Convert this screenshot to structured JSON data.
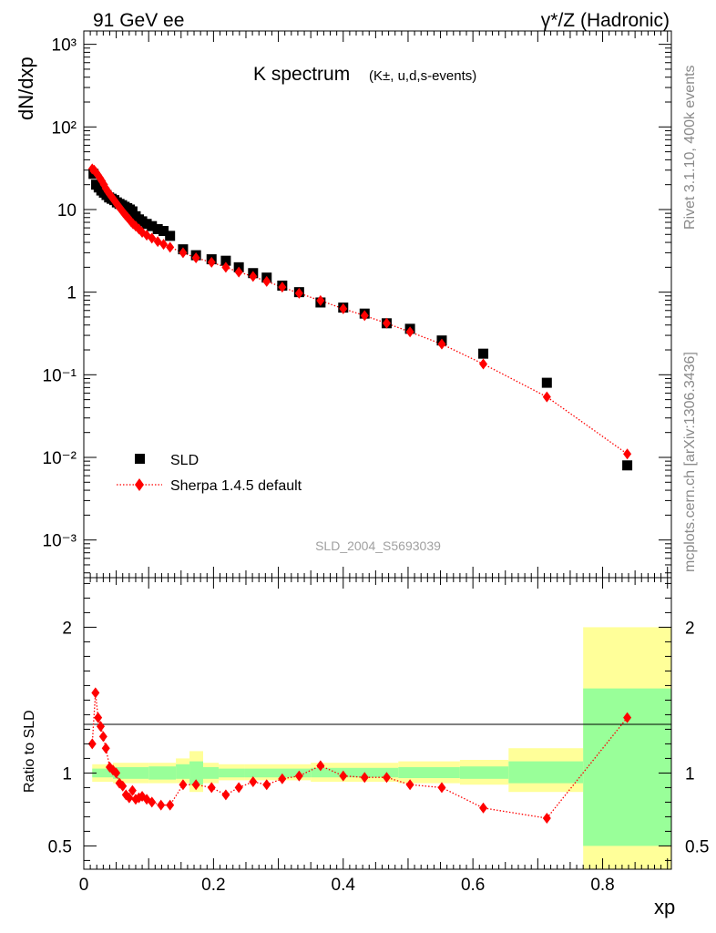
{
  "header": {
    "left_label": "91 GeV ee",
    "right_label": "γ*/Z (Hadronic)"
  },
  "side_text": {
    "version": "Rivet 3.1.10,  400k events",
    "source": "mcplots.cern.ch [arXiv:1306.3436]"
  },
  "watermark": "SLD_2004_S5693039",
  "chart_data": [
    {
      "type": "scatter",
      "name": "main",
      "title": "K spectrum",
      "subtitle": "(K±, u,d,s-events)",
      "xlabel": "xp",
      "ylabel": "dN/dxp",
      "yscale": "log",
      "xlim": [
        0,
        0.906
      ],
      "ylim": [
        0.00035,
        1450
      ],
      "xticks": [
        "0",
        "0.2",
        "0.4",
        "0.6",
        "0.8"
      ],
      "yticks": [
        "10⁻³",
        "10⁻²",
        "10⁻¹",
        "1",
        "10",
        "10²",
        "10³"
      ],
      "legend": {
        "position": "bottom-left",
        "entries": [
          "SLD",
          "Sherpa 1.4.5 default"
        ]
      },
      "series": [
        {
          "name": "SLD",
          "marker": "square",
          "color": "#000000",
          "x": [
            0.015,
            0.019,
            0.023,
            0.027,
            0.031,
            0.035,
            0.039,
            0.043,
            0.047,
            0.051,
            0.055,
            0.059,
            0.063,
            0.067,
            0.071,
            0.075,
            0.08,
            0.085,
            0.09,
            0.097,
            0.105,
            0.114,
            0.123,
            0.133,
            0.153,
            0.173,
            0.197,
            0.219,
            0.239,
            0.261,
            0.282,
            0.306,
            0.332,
            0.365,
            0.4,
            0.433,
            0.467,
            0.503,
            0.552,
            0.616,
            0.714,
            0.838
          ],
          "y": [
            27,
            20,
            18.5,
            17,
            16,
            15,
            14,
            13.5,
            13,
            12.2,
            11.7,
            11.3,
            10.8,
            10.4,
            10,
            9.5,
            8.3,
            7.6,
            7.2,
            6.7,
            6.3,
            5.8,
            5.5,
            4.8,
            3.3,
            2.8,
            2.5,
            2.4,
            2.0,
            1.7,
            1.5,
            1.2,
            1.0,
            0.75,
            0.65,
            0.55,
            0.42,
            0.36,
            0.26,
            0.18,
            0.08,
            0.008
          ]
        },
        {
          "name": "Sherpa 1.4.5 default",
          "marker": "diamond",
          "line": "dotted",
          "color": "#ff0000",
          "x": [
            0.013,
            0.016,
            0.019,
            0.022,
            0.025,
            0.028,
            0.031,
            0.034,
            0.037,
            0.04,
            0.043,
            0.046,
            0.049,
            0.052,
            0.055,
            0.058,
            0.061,
            0.064,
            0.067,
            0.07,
            0.073,
            0.076,
            0.08,
            0.085,
            0.09,
            0.097,
            0.105,
            0.114,
            0.123,
            0.133,
            0.153,
            0.173,
            0.197,
            0.219,
            0.239,
            0.261,
            0.282,
            0.306,
            0.332,
            0.365,
            0.4,
            0.433,
            0.467,
            0.503,
            0.552,
            0.616,
            0.714,
            0.838
          ],
          "y": [
            31,
            30,
            28,
            26,
            24,
            22,
            20,
            18,
            16.5,
            15.3,
            14.2,
            13.2,
            12.3,
            11.4,
            10.6,
            9.9,
            9.2,
            8.6,
            8.1,
            7.6,
            7.1,
            6.7,
            6.3,
            5.8,
            5.3,
            4.9,
            4.5,
            4.1,
            3.8,
            3.5,
            3.0,
            2.6,
            2.3,
            2.0,
            1.75,
            1.55,
            1.35,
            1.15,
            0.97,
            0.79,
            0.63,
            0.52,
            0.42,
            0.33,
            0.235,
            0.135,
            0.054,
            0.011
          ]
        }
      ]
    },
    {
      "type": "scatter",
      "name": "ratio",
      "xlabel": "xp",
      "ylabel": "Ratio to SLD",
      "xlim": [
        0,
        0.906
      ],
      "ylim": [
        0.34,
        2.34
      ],
      "xticks": [
        "0",
        "0.2",
        "0.4",
        "0.6",
        "0.8"
      ],
      "yticks": [
        "0.5",
        "1",
        "2"
      ],
      "bands": [
        {
          "x0": 0.013,
          "x1": 0.045,
          "inner": [
            0.97,
            1.03
          ],
          "outer": [
            0.94,
            1.06
          ]
        },
        {
          "x0": 0.045,
          "x1": 0.1,
          "inner": [
            0.96,
            1.04
          ],
          "outer": [
            0.93,
            1.07
          ]
        },
        {
          "x0": 0.1,
          "x1": 0.142,
          "inner": [
            0.955,
            1.045
          ],
          "outer": [
            0.93,
            1.07
          ]
        },
        {
          "x0": 0.142,
          "x1": 0.163,
          "inner": [
            0.96,
            1.06
          ],
          "outer": [
            0.93,
            1.1
          ]
        },
        {
          "x0": 0.163,
          "x1": 0.184,
          "inner": [
            0.92,
            1.08
          ],
          "outer": [
            0.87,
            1.15
          ]
        },
        {
          "x0": 0.184,
          "x1": 0.208,
          "inner": [
            0.96,
            1.04
          ],
          "outer": [
            0.93,
            1.07
          ]
        },
        {
          "x0": 0.208,
          "x1": 0.248,
          "inner": [
            0.97,
            1.03
          ],
          "outer": [
            0.95,
            1.06
          ]
        },
        {
          "x0": 0.248,
          "x1": 0.35,
          "inner": [
            0.97,
            1.03
          ],
          "outer": [
            0.95,
            1.06
          ]
        },
        {
          "x0": 0.35,
          "x1": 0.485,
          "inner": [
            0.97,
            1.035
          ],
          "outer": [
            0.94,
            1.07
          ]
        },
        {
          "x0": 0.485,
          "x1": 0.58,
          "inner": [
            0.965,
            1.04
          ],
          "outer": [
            0.93,
            1.08
          ]
        },
        {
          "x0": 0.58,
          "x1": 0.655,
          "inner": [
            0.96,
            1.045
          ],
          "outer": [
            0.92,
            1.09
          ]
        },
        {
          "x0": 0.655,
          "x1": 0.77,
          "inner": [
            0.93,
            1.08
          ],
          "outer": [
            0.87,
            1.17
          ]
        },
        {
          "x0": 0.77,
          "x1": 0.906,
          "inner": [
            0.5,
            1.58
          ],
          "outer": [
            0.3,
            2.0
          ]
        }
      ],
      "reference_line": 1,
      "series": [
        {
          "name": "Sherpa 1.4.5 default / SLD",
          "marker": "diamond",
          "line": "dotted",
          "color": "#ff0000",
          "x": [
            0.013,
            0.018,
            0.022,
            0.026,
            0.03,
            0.034,
            0.04,
            0.045,
            0.05,
            0.055,
            0.06,
            0.065,
            0.07,
            0.075,
            0.08,
            0.085,
            0.09,
            0.097,
            0.105,
            0.119,
            0.133,
            0.153,
            0.173,
            0.197,
            0.219,
            0.239,
            0.261,
            0.282,
            0.306,
            0.332,
            0.365,
            0.4,
            0.433,
            0.467,
            0.503,
            0.552,
            0.616,
            0.714,
            0.838
          ],
          "y": [
            1.2,
            1.55,
            1.38,
            1.32,
            1.25,
            1.17,
            1.04,
            1.02,
            1.0,
            0.93,
            0.91,
            0.85,
            0.83,
            0.88,
            0.82,
            0.83,
            0.84,
            0.82,
            0.8,
            0.78,
            0.78,
            0.92,
            0.92,
            0.9,
            0.85,
            0.9,
            0.94,
            0.92,
            0.96,
            0.98,
            1.05,
            0.98,
            0.97,
            0.97,
            0.92,
            0.9,
            0.76,
            0.69,
            1.38
          ]
        }
      ]
    }
  ]
}
